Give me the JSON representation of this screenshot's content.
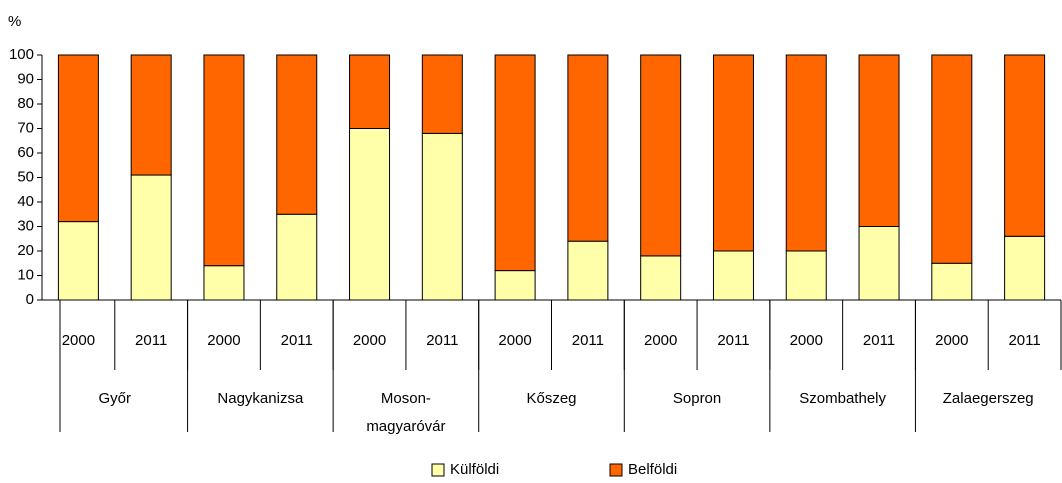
{
  "chart_data": {
    "type": "stacked_bar",
    "y_label": "%",
    "categories": [
      "2000",
      "2011",
      "2000",
      "2011",
      "2000",
      "2011",
      "2000",
      "2011",
      "2000",
      "2011",
      "2000",
      "2011",
      "2000",
      "2011"
    ],
    "groups": [
      [
        "Győr"
      ],
      [
        "Nagykanizsa"
      ],
      [
        "Moson-",
        "magyaróvár"
      ],
      [
        "Kőszeg"
      ],
      [
        "Sopron"
      ],
      [
        "Szombathely"
      ],
      [
        "Zalaegerszeg"
      ]
    ],
    "series": [
      {
        "name": "Külföldi",
        "color": "#ffffaa",
        "values": [
          32,
          51,
          14,
          35,
          70,
          68,
          12,
          24,
          18,
          20,
          20,
          30,
          15,
          26
        ]
      },
      {
        "name": "Belföldi",
        "color": "#ff6600",
        "values": [
          68,
          49,
          86,
          65,
          30,
          32,
          88,
          76,
          82,
          80,
          80,
          70,
          85,
          74
        ]
      }
    ],
    "ylim": [
      0,
      100
    ],
    "yticks": [
      0,
      10,
      20,
      30,
      40,
      50,
      60,
      70,
      80,
      90,
      100
    ]
  }
}
